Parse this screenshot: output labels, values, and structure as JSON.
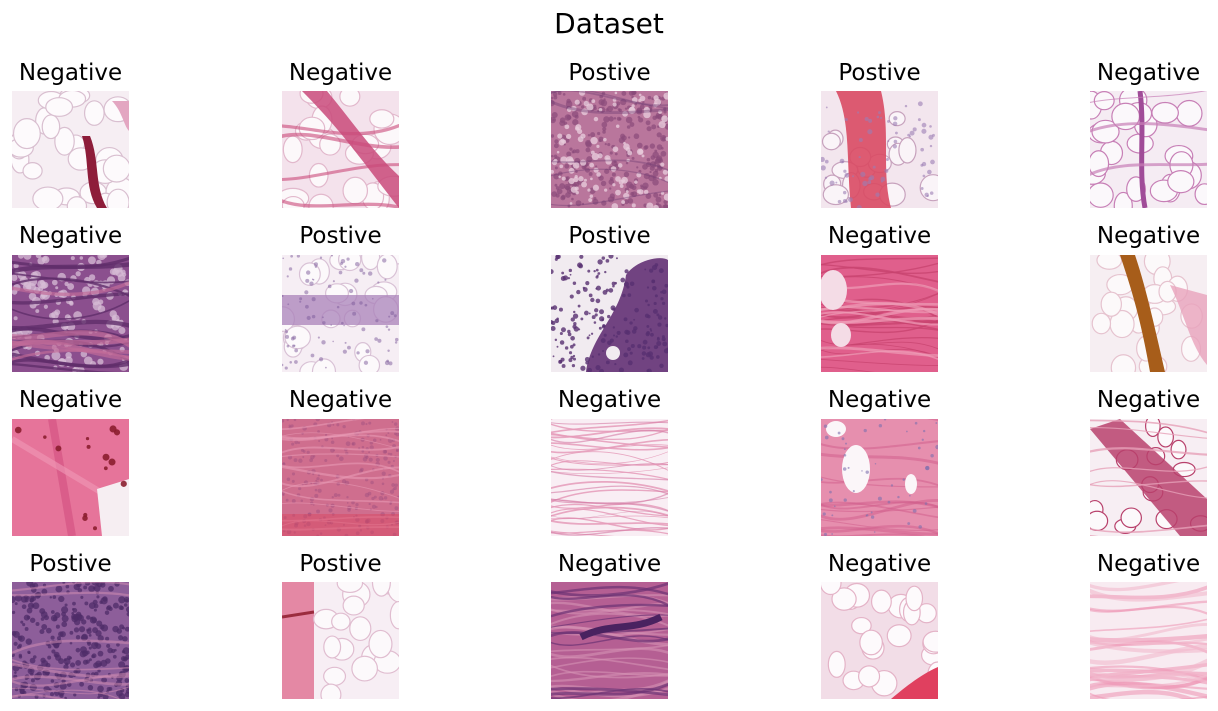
{
  "figure": {
    "title": "Dataset"
  },
  "tiles": [
    {
      "label": "Negative",
      "pattern": "adipose",
      "colors": {
        "bg": "#f6eef3",
        "cell": "#fdfafc",
        "stroke": "#d9bfd0",
        "accent": "#8e1d3a"
      }
    },
    {
      "label": "Negative",
      "pattern": "adipose-band",
      "colors": {
        "bg": "#f4e2ec",
        "cell": "#fcf8fa",
        "stroke": "#e2b8cc",
        "accent": "#c94a7a"
      }
    },
    {
      "label": "Postive",
      "pattern": "dense",
      "colors": {
        "bg": "#b9769c",
        "cell": "#e7cadb",
        "stroke": "#8a4a7a",
        "accent": "#6e3c74"
      }
    },
    {
      "label": "Postive",
      "pattern": "band-red",
      "colors": {
        "bg": "#f3e6ee",
        "cell": "#faf4f8",
        "stroke": "#c7a2bd",
        "accent": "#d94a63"
      }
    },
    {
      "label": "Negative",
      "pattern": "adipose-thin",
      "colors": {
        "bg": "#f5ecf3",
        "cell": "#fbf8fb",
        "stroke": "#c77fb6",
        "accent": "#a04c98"
      }
    },
    {
      "label": "Negative",
      "pattern": "purple-fibers",
      "colors": {
        "bg": "#8b4f8e",
        "cell": "#d7bcd6",
        "stroke": "#5f2d6a",
        "accent": "#c16b98"
      }
    },
    {
      "label": "Postive",
      "pattern": "adipose-strip",
      "colors": {
        "bg": "#f6eef4",
        "cell": "#fcf9fb",
        "stroke": "#d9c2d6",
        "accent": "#a982ba"
      }
    },
    {
      "label": "Postive",
      "pattern": "blob-purple",
      "colors": {
        "bg": "#f1ebf0",
        "cell": "#f1ebf0",
        "stroke": "#714381",
        "accent": "#573070"
      }
    },
    {
      "label": "Negative",
      "pattern": "pink-fibrous",
      "colors": {
        "bg": "#e05f8c",
        "cell": "#f4dce6",
        "stroke": "#c8446f",
        "accent": "#ee9cb6"
      }
    },
    {
      "label": "Negative",
      "pattern": "adipose-brown",
      "colors": {
        "bg": "#f6eef2",
        "cell": "#fcf9fa",
        "stroke": "#e6c3cf",
        "accent": "#a75d1a"
      }
    },
    {
      "label": "Negative",
      "pattern": "pink-smooth",
      "colors": {
        "bg": "#e6749a",
        "cell": "#f6eef2",
        "stroke": "#d45483",
        "accent": "#8b1e2f"
      }
    },
    {
      "label": "Negative",
      "pattern": "pink-texture",
      "colors": {
        "bg": "#cf6e8e",
        "cell": "#e79ab4",
        "stroke": "#a14f80",
        "accent": "#d9445e"
      }
    },
    {
      "label": "Negative",
      "pattern": "loose-lines",
      "colors": {
        "bg": "#f9eef4",
        "cell": "#fcf7fa",
        "stroke": "#e59ab8",
        "accent": "#d37aa3"
      }
    },
    {
      "label": "Negative",
      "pattern": "pink-holes",
      "colors": {
        "bg": "#e68fae",
        "cell": "#fbf6f9",
        "stroke": "#7d6fae",
        "accent": "#c76d98"
      }
    },
    {
      "label": "Negative",
      "pattern": "diagonal-band",
      "colors": {
        "bg": "#f7eef3",
        "cell": "#fcf9fb",
        "stroke": "#b8416c",
        "accent": "#e6a0b8"
      }
    },
    {
      "label": "Postive",
      "pattern": "cellular",
      "colors": {
        "bg": "#8d5e9a",
        "cell": "#c07aa9",
        "stroke": "#4f2c68",
        "accent": "#d58fb4"
      }
    },
    {
      "label": "Postive",
      "pattern": "split",
      "colors": {
        "bg": "#f7eef4",
        "cell": "#fcf9fb",
        "stroke": "#e0bdd0",
        "accent": "#e07595"
      }
    },
    {
      "label": "Negative",
      "pattern": "streaky",
      "colors": {
        "bg": "#b55f93",
        "cell": "#d592b4",
        "stroke": "#6b3274",
        "accent": "#e07aa0"
      }
    },
    {
      "label": "Negative",
      "pattern": "adipose-red",
      "colors": {
        "bg": "#f2dde7",
        "cell": "#fdfafc",
        "stroke": "#e4b3c7",
        "accent": "#e0405f"
      }
    },
    {
      "label": "Negative",
      "pattern": "pink-wavy",
      "colors": {
        "bg": "#f8ebf1",
        "cell": "#fcf6f9",
        "stroke": "#ef9ab8",
        "accent": "#f2b9cd"
      }
    }
  ]
}
